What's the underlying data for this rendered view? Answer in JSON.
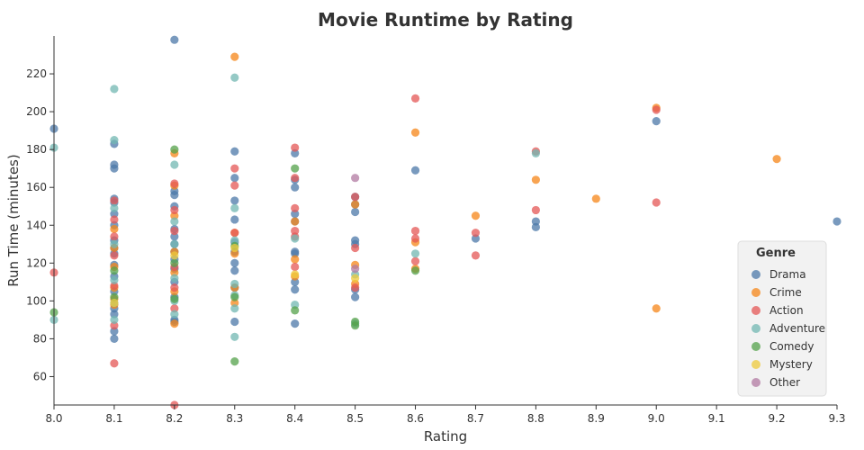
{
  "chart_data": {
    "type": "scatter",
    "title": "Movie Runtime by Rating",
    "xlabel": "Rating",
    "ylabel": "Run Time (minutes)",
    "xlim": [
      8.0,
      9.3
    ],
    "ylim": [
      45,
      240
    ],
    "xticks": [
      "8.0",
      "8.1",
      "8.2",
      "8.3",
      "8.4",
      "8.5",
      "8.6",
      "8.7",
      "8.8",
      "8.9",
      "9.0",
      "9.1",
      "9.2",
      "9.3"
    ],
    "yticks": [
      "60",
      "80",
      "100",
      "120",
      "140",
      "160",
      "180",
      "200",
      "220"
    ],
    "grid": false,
    "legend": {
      "title": "Genre",
      "position": "right"
    },
    "series": [
      {
        "name": "Drama",
        "color": "#4c78a8",
        "points": [
          [
            8.0,
            191
          ],
          [
            8.1,
            183
          ],
          [
            8.1,
            172
          ],
          [
            8.1,
            170
          ],
          [
            8.1,
            154
          ],
          [
            8.1,
            152
          ],
          [
            8.1,
            146
          ],
          [
            8.1,
            140
          ],
          [
            8.1,
            132
          ],
          [
            8.1,
            128
          ],
          [
            8.1,
            125
          ],
          [
            8.1,
            119
          ],
          [
            8.1,
            113
          ],
          [
            8.1,
            105
          ],
          [
            8.1,
            96
          ],
          [
            8.1,
            93
          ],
          [
            8.1,
            84
          ],
          [
            8.1,
            80
          ],
          [
            8.2,
            238
          ],
          [
            8.2,
            158
          ],
          [
            8.2,
            156
          ],
          [
            8.2,
            150
          ],
          [
            8.2,
            138
          ],
          [
            8.2,
            134
          ],
          [
            8.2,
            130
          ],
          [
            8.2,
            126
          ],
          [
            8.2,
            122
          ],
          [
            8.2,
            117
          ],
          [
            8.2,
            110
          ],
          [
            8.2,
            102
          ],
          [
            8.2,
            90
          ],
          [
            8.2,
            89
          ],
          [
            8.3,
            179
          ],
          [
            8.3,
            165
          ],
          [
            8.3,
            153
          ],
          [
            8.3,
            143
          ],
          [
            8.3,
            131
          ],
          [
            8.3,
            126
          ],
          [
            8.3,
            120
          ],
          [
            8.3,
            116
          ],
          [
            8.3,
            107
          ],
          [
            8.3,
            89
          ],
          [
            8.4,
            178
          ],
          [
            8.4,
            164
          ],
          [
            8.4,
            160
          ],
          [
            8.4,
            146
          ],
          [
            8.4,
            142
          ],
          [
            8.4,
            126
          ],
          [
            8.4,
            125
          ],
          [
            8.4,
            110
          ],
          [
            8.4,
            106
          ],
          [
            8.4,
            88
          ],
          [
            8.5,
            155
          ],
          [
            8.5,
            151
          ],
          [
            8.5,
            147
          ],
          [
            8.5,
            132
          ],
          [
            8.5,
            130
          ],
          [
            8.5,
            106
          ],
          [
            8.5,
            102
          ],
          [
            8.6,
            169
          ],
          [
            8.7,
            133
          ],
          [
            8.8,
            142
          ],
          [
            8.8,
            139
          ],
          [
            9.0,
            195
          ],
          [
            9.3,
            142
          ]
        ]
      },
      {
        "name": "Crime",
        "color": "#f58518",
        "points": [
          [
            8.1,
            138
          ],
          [
            8.1,
            128
          ],
          [
            8.1,
            118
          ],
          [
            8.1,
            107
          ],
          [
            8.1,
            101
          ],
          [
            8.1,
            98
          ],
          [
            8.2,
            178
          ],
          [
            8.2,
            161
          ],
          [
            8.2,
            145
          ],
          [
            8.2,
            126
          ],
          [
            8.2,
            115
          ],
          [
            8.2,
            105
          ],
          [
            8.2,
            88
          ],
          [
            8.3,
            229
          ],
          [
            8.3,
            136
          ],
          [
            8.3,
            125
          ],
          [
            8.3,
            107
          ],
          [
            8.3,
            99
          ],
          [
            8.4,
            142
          ],
          [
            8.4,
            122
          ],
          [
            8.4,
            113
          ],
          [
            8.5,
            151
          ],
          [
            8.5,
            119
          ],
          [
            8.5,
            109
          ],
          [
            8.6,
            189
          ],
          [
            8.6,
            131
          ],
          [
            8.6,
            117
          ],
          [
            8.7,
            145
          ],
          [
            8.8,
            164
          ],
          [
            8.9,
            154
          ],
          [
            9.0,
            202
          ],
          [
            9.0,
            96
          ],
          [
            9.2,
            175
          ]
        ]
      },
      {
        "name": "Action",
        "color": "#e45756",
        "points": [
          [
            8.0,
            115
          ],
          [
            8.1,
            153
          ],
          [
            8.1,
            143
          ],
          [
            8.1,
            134
          ],
          [
            8.1,
            124
          ],
          [
            8.1,
            108
          ],
          [
            8.1,
            87
          ],
          [
            8.1,
            67
          ],
          [
            8.2,
            162
          ],
          [
            8.2,
            148
          ],
          [
            8.2,
            137
          ],
          [
            8.2,
            118
          ],
          [
            8.2,
            107
          ],
          [
            8.2,
            96
          ],
          [
            8.2,
            45
          ],
          [
            8.3,
            170
          ],
          [
            8.3,
            161
          ],
          [
            8.3,
            136
          ],
          [
            8.4,
            181
          ],
          [
            8.4,
            165
          ],
          [
            8.4,
            149
          ],
          [
            8.4,
            137
          ],
          [
            8.4,
            134
          ],
          [
            8.4,
            118
          ],
          [
            8.5,
            155
          ],
          [
            8.5,
            128
          ],
          [
            8.5,
            107
          ],
          [
            8.6,
            207
          ],
          [
            8.6,
            137
          ],
          [
            8.6,
            133
          ],
          [
            8.6,
            121
          ],
          [
            8.7,
            136
          ],
          [
            8.7,
            124
          ],
          [
            8.8,
            179
          ],
          [
            8.8,
            148
          ],
          [
            9.0,
            201
          ],
          [
            9.0,
            152
          ]
        ]
      },
      {
        "name": "Adventure",
        "color": "#72b7b2",
        "points": [
          [
            8.0,
            181
          ],
          [
            8.0,
            90
          ],
          [
            8.1,
            212
          ],
          [
            8.1,
            185
          ],
          [
            8.1,
            149
          ],
          [
            8.1,
            130
          ],
          [
            8.1,
            111
          ],
          [
            8.1,
            99
          ],
          [
            8.1,
            90
          ],
          [
            8.2,
            172
          ],
          [
            8.2,
            142
          ],
          [
            8.2,
            130
          ],
          [
            8.2,
            112
          ],
          [
            8.2,
            100
          ],
          [
            8.2,
            93
          ],
          [
            8.3,
            218
          ],
          [
            8.3,
            149
          ],
          [
            8.3,
            132
          ],
          [
            8.3,
            109
          ],
          [
            8.3,
            103
          ],
          [
            8.3,
            96
          ],
          [
            8.3,
            81
          ],
          [
            8.4,
            133
          ],
          [
            8.4,
            98
          ],
          [
            8.5,
            114
          ],
          [
            8.5,
            88
          ],
          [
            8.6,
            125
          ],
          [
            8.8,
            178
          ]
        ]
      },
      {
        "name": "Comedy",
        "color": "#54a24b",
        "points": [
          [
            8.0,
            94
          ],
          [
            8.1,
            116
          ],
          [
            8.1,
            102
          ],
          [
            8.2,
            180
          ],
          [
            8.2,
            120
          ],
          [
            8.2,
            101
          ],
          [
            8.3,
            129
          ],
          [
            8.3,
            102
          ],
          [
            8.3,
            68
          ],
          [
            8.4,
            170
          ],
          [
            8.4,
            95
          ],
          [
            8.5,
            89
          ],
          [
            8.5,
            87
          ],
          [
            8.6,
            116
          ]
        ]
      },
      {
        "name": "Mystery",
        "color": "#eeca3b",
        "points": [
          [
            8.1,
            99
          ],
          [
            8.2,
            124
          ],
          [
            8.3,
            128
          ],
          [
            8.4,
            114
          ],
          [
            8.5,
            112
          ]
        ]
      },
      {
        "name": "Other",
        "color": "#b279a2",
        "points": [
          [
            8.5,
            165
          ],
          [
            8.5,
            117
          ]
        ]
      }
    ]
  }
}
